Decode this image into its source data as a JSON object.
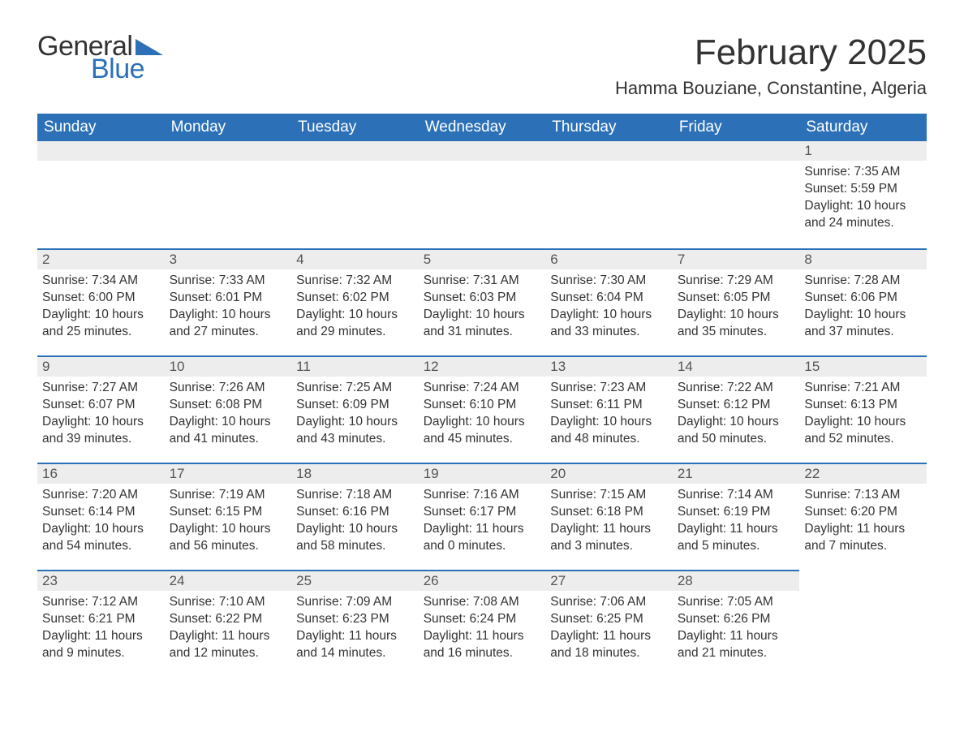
{
  "logo": {
    "text1": "General",
    "text2": "Blue",
    "tri_color": "#2c71b8"
  },
  "header": {
    "month_title": "February 2025",
    "location": "Hamma Bouziane, Constantine, Algeria"
  },
  "calendar": {
    "type": "table",
    "header_bg": "#2c71b8",
    "header_fg": "#ffffff",
    "daynum_bg": "#ededed",
    "daynum_border_top": "#2c71b8",
    "text_color": "#333333",
    "columns": [
      "Sunday",
      "Monday",
      "Tuesday",
      "Wednesday",
      "Thursday",
      "Friday",
      "Saturday"
    ],
    "weeks": [
      [
        {
          "empty": true
        },
        {
          "empty": true
        },
        {
          "empty": true
        },
        {
          "empty": true
        },
        {
          "empty": true
        },
        {
          "empty": true
        },
        {
          "day": "1",
          "sunrise": "7:35 AM",
          "sunset": "5:59 PM",
          "daylight": "10 hours and 24 minutes."
        }
      ],
      [
        {
          "day": "2",
          "sunrise": "7:34 AM",
          "sunset": "6:00 PM",
          "daylight": "10 hours and 25 minutes."
        },
        {
          "day": "3",
          "sunrise": "7:33 AM",
          "sunset": "6:01 PM",
          "daylight": "10 hours and 27 minutes."
        },
        {
          "day": "4",
          "sunrise": "7:32 AM",
          "sunset": "6:02 PM",
          "daylight": "10 hours and 29 minutes."
        },
        {
          "day": "5",
          "sunrise": "7:31 AM",
          "sunset": "6:03 PM",
          "daylight": "10 hours and 31 minutes."
        },
        {
          "day": "6",
          "sunrise": "7:30 AM",
          "sunset": "6:04 PM",
          "daylight": "10 hours and 33 minutes."
        },
        {
          "day": "7",
          "sunrise": "7:29 AM",
          "sunset": "6:05 PM",
          "daylight": "10 hours and 35 minutes."
        },
        {
          "day": "8",
          "sunrise": "7:28 AM",
          "sunset": "6:06 PM",
          "daylight": "10 hours and 37 minutes."
        }
      ],
      [
        {
          "day": "9",
          "sunrise": "7:27 AM",
          "sunset": "6:07 PM",
          "daylight": "10 hours and 39 minutes."
        },
        {
          "day": "10",
          "sunrise": "7:26 AM",
          "sunset": "6:08 PM",
          "daylight": "10 hours and 41 minutes."
        },
        {
          "day": "11",
          "sunrise": "7:25 AM",
          "sunset": "6:09 PM",
          "daylight": "10 hours and 43 minutes."
        },
        {
          "day": "12",
          "sunrise": "7:24 AM",
          "sunset": "6:10 PM",
          "daylight": "10 hours and 45 minutes."
        },
        {
          "day": "13",
          "sunrise": "7:23 AM",
          "sunset": "6:11 PM",
          "daylight": "10 hours and 48 minutes."
        },
        {
          "day": "14",
          "sunrise": "7:22 AM",
          "sunset": "6:12 PM",
          "daylight": "10 hours and 50 minutes."
        },
        {
          "day": "15",
          "sunrise": "7:21 AM",
          "sunset": "6:13 PM",
          "daylight": "10 hours and 52 minutes."
        }
      ],
      [
        {
          "day": "16",
          "sunrise": "7:20 AM",
          "sunset": "6:14 PM",
          "daylight": "10 hours and 54 minutes."
        },
        {
          "day": "17",
          "sunrise": "7:19 AM",
          "sunset": "6:15 PM",
          "daylight": "10 hours and 56 minutes."
        },
        {
          "day": "18",
          "sunrise": "7:18 AM",
          "sunset": "6:16 PM",
          "daylight": "10 hours and 58 minutes."
        },
        {
          "day": "19",
          "sunrise": "7:16 AM",
          "sunset": "6:17 PM",
          "daylight": "11 hours and 0 minutes."
        },
        {
          "day": "20",
          "sunrise": "7:15 AM",
          "sunset": "6:18 PM",
          "daylight": "11 hours and 3 minutes."
        },
        {
          "day": "21",
          "sunrise": "7:14 AM",
          "sunset": "6:19 PM",
          "daylight": "11 hours and 5 minutes."
        },
        {
          "day": "22",
          "sunrise": "7:13 AM",
          "sunset": "6:20 PM",
          "daylight": "11 hours and 7 minutes."
        }
      ],
      [
        {
          "day": "23",
          "sunrise": "7:12 AM",
          "sunset": "6:21 PM",
          "daylight": "11 hours and 9 minutes."
        },
        {
          "day": "24",
          "sunrise": "7:10 AM",
          "sunset": "6:22 PM",
          "daylight": "11 hours and 12 minutes."
        },
        {
          "day": "25",
          "sunrise": "7:09 AM",
          "sunset": "6:23 PM",
          "daylight": "11 hours and 14 minutes."
        },
        {
          "day": "26",
          "sunrise": "7:08 AM",
          "sunset": "6:24 PM",
          "daylight": "11 hours and 16 minutes."
        },
        {
          "day": "27",
          "sunrise": "7:06 AM",
          "sunset": "6:25 PM",
          "daylight": "11 hours and 18 minutes."
        },
        {
          "day": "28",
          "sunrise": "7:05 AM",
          "sunset": "6:26 PM",
          "daylight": "11 hours and 21 minutes."
        },
        {
          "empty": true,
          "noheader": true
        }
      ]
    ]
  }
}
